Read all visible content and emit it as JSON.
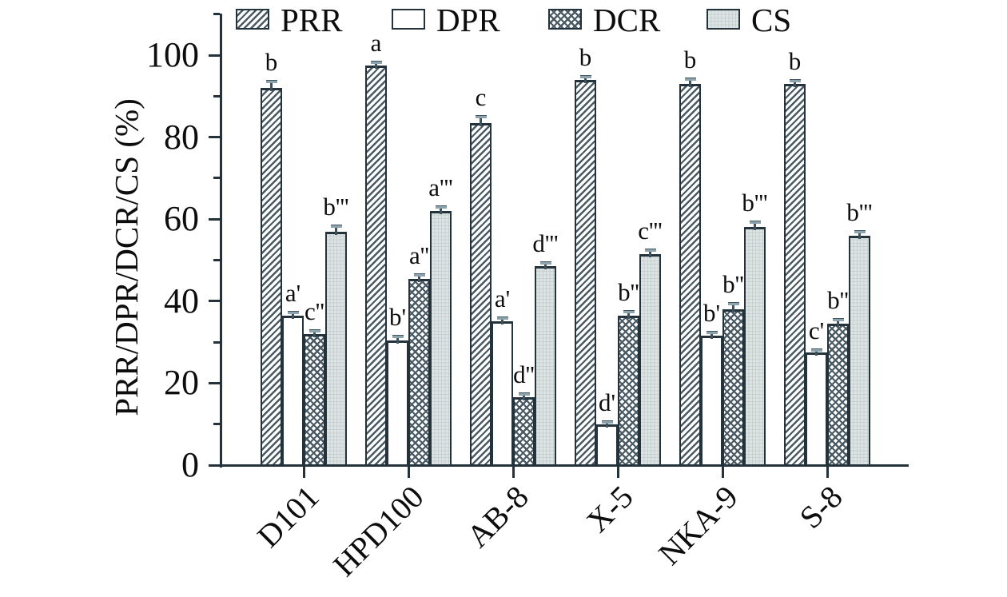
{
  "chart_data": {
    "type": "bar",
    "title": "",
    "xlabel": "",
    "ylabel": "PRR/DPR/DCR/CS (%)",
    "ylim": [
      0,
      110
    ],
    "yticks_major": [
      0,
      20,
      40,
      60,
      80,
      100
    ],
    "yticks_minor": [
      10,
      30,
      50,
      70,
      90,
      110
    ],
    "grid": false,
    "legend_position": "top",
    "categories": [
      "D101",
      "HPD100",
      "AB-8",
      "X-5",
      "NKA-9",
      "S-8"
    ],
    "series": [
      {
        "name": "PRR",
        "pattern": "diagonal-hatch",
        "values": [
          92,
          97.5,
          83.5,
          94,
          93,
          93
        ],
        "errors": [
          1.5,
          0.8,
          1.5,
          0.8,
          1.2,
          0.8
        ],
        "sig_labels": [
          "b",
          "a",
          "c",
          "b",
          "b",
          "b"
        ]
      },
      {
        "name": "DPR",
        "pattern": "plain",
        "values": [
          36.5,
          30.5,
          35,
          10,
          31.5,
          27.5
        ],
        "errors": [
          0.8,
          0.8,
          0.8,
          0.5,
          0.8,
          0.6
        ],
        "sig_labels": [
          "a'",
          "b'",
          "a'",
          "d'",
          "b'",
          "c'"
        ]
      },
      {
        "name": "DCR",
        "pattern": "crosshatch",
        "values": [
          32,
          45.5,
          16.5,
          36.5,
          38,
          34.5
        ],
        "errors": [
          0.8,
          0.8,
          0.8,
          1.0,
          1.3,
          1.0
        ],
        "sig_labels": [
          "c''",
          "a''",
          "d''",
          "b''",
          "b''",
          "b''"
        ]
      },
      {
        "name": "CS",
        "pattern": "grid",
        "values": [
          57,
          62,
          48.5,
          51.5,
          58,
          56
        ],
        "errors": [
          1.2,
          1.0,
          0.8,
          1.0,
          1.3,
          1.0
        ],
        "sig_labels": [
          "b'''",
          "a'''",
          "d'''",
          "c'''",
          "b'''",
          "b'''"
        ]
      }
    ],
    "colors": {
      "axis_ink": "#24323b",
      "hatch_ink": "#4a5a64",
      "cs_fill": "#dee4e3",
      "cs_gridline": "#c6d0d0",
      "error_whisker": "#3f525c",
      "error_cap": "#8da3ad",
      "text": "#0d0d0d",
      "background": "#ffffff"
    }
  }
}
